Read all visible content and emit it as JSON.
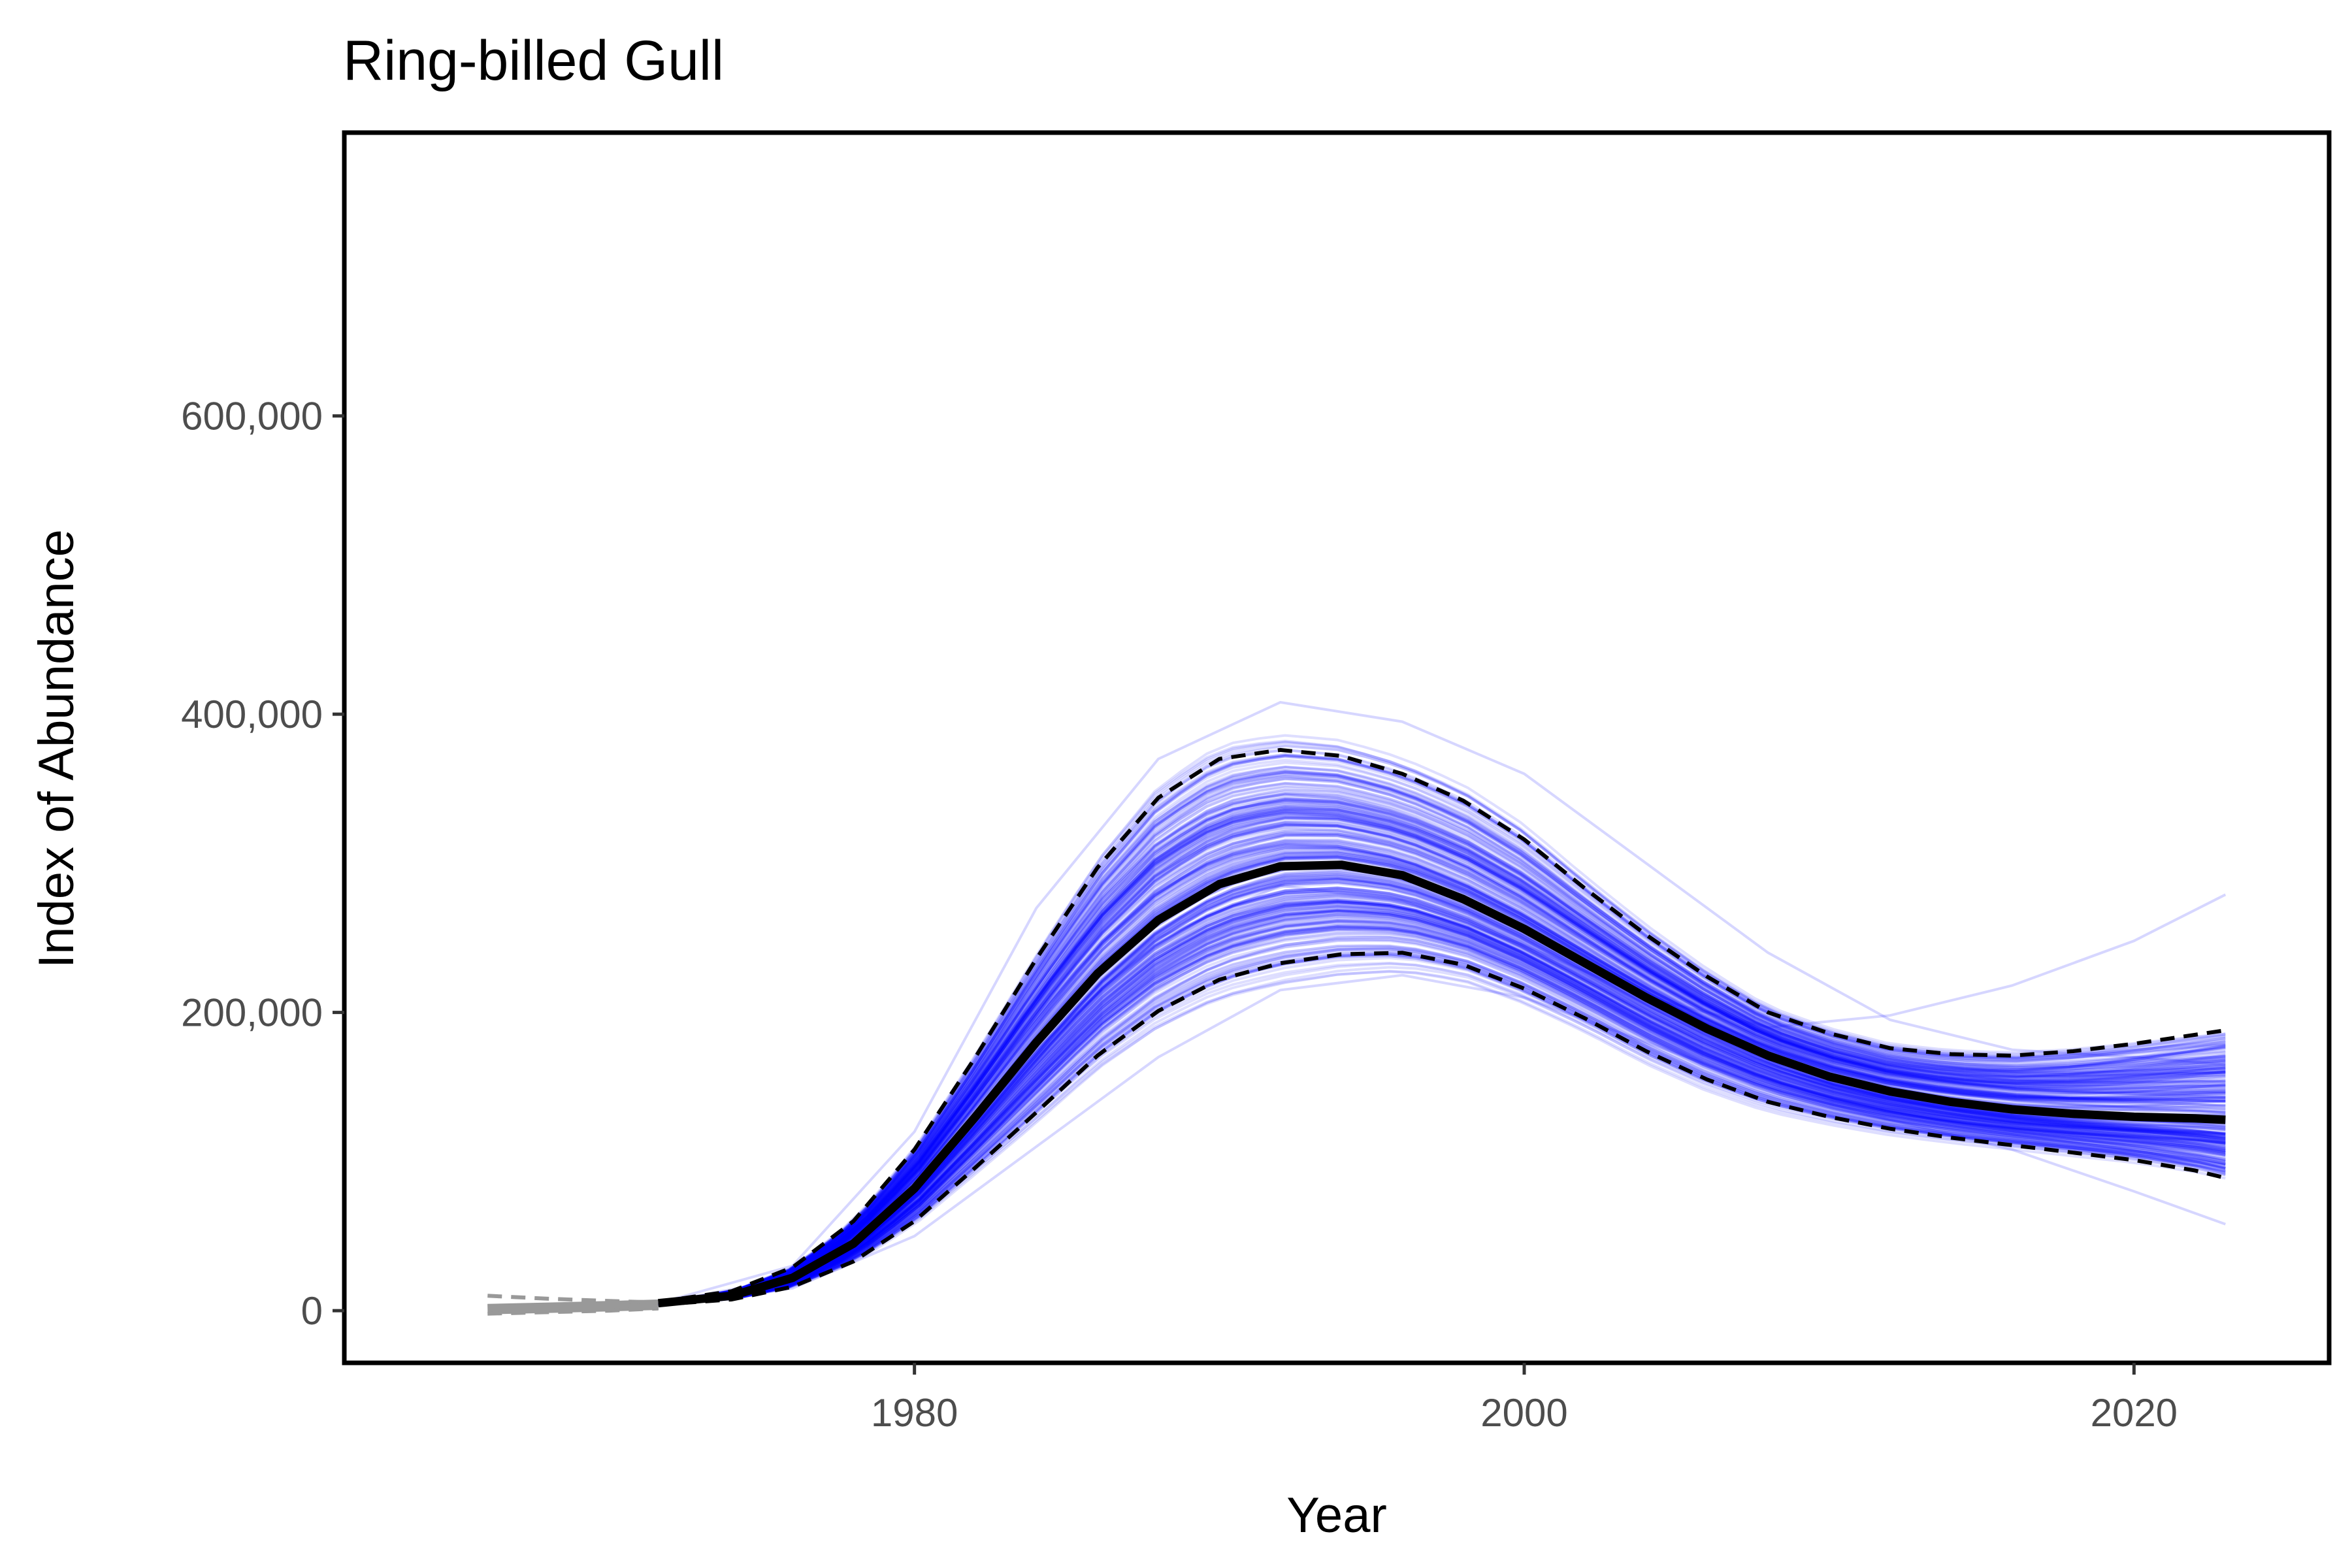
{
  "chart_data": {
    "type": "line",
    "title": "Ring-billed Gull",
    "xlabel": "Year",
    "ylabel": "Index of Abundance",
    "xlim": [
      1961.3,
      2026.4
    ],
    "ylim": [
      -35000,
      790000
    ],
    "x_ticks": [
      1980,
      2000,
      2020
    ],
    "x_tick_labels": [
      "1980",
      "2000",
      "2020"
    ],
    "y_ticks": [
      0,
      200000,
      400000,
      600000
    ],
    "y_tick_labels": [
      "0",
      "200,000",
      "400,000",
      "600,000"
    ],
    "grid": false,
    "legend": "none",
    "colors": {
      "trajectory": "#0000ff",
      "trend": "#000000",
      "early_period": "#999999"
    },
    "early_period": {
      "x": [
        1966,
        1968,
        1970,
        1971.6
      ],
      "median": [
        1000,
        2000,
        3000,
        4000
      ],
      "upper": [
        10000,
        8000,
        6500,
        5500
      ],
      "lower": [
        -2000,
        -1000,
        0,
        1500
      ]
    },
    "trend": {
      "x": [
        1971.6,
        1974,
        1976,
        1978,
        1980,
        1982,
        1984,
        1986,
        1988,
        1990,
        1992,
        1994,
        1996,
        1998,
        2000,
        2002,
        2004,
        2006,
        2008,
        2010,
        2012,
        2014,
        2016,
        2018,
        2020,
        2022,
        2023
      ],
      "median": [
        5000,
        10000,
        22000,
        45000,
        82000,
        130000,
        180000,
        226000,
        262000,
        286000,
        298000,
        299000,
        292000,
        276000,
        256000,
        233000,
        210000,
        189000,
        171000,
        157000,
        147000,
        140000,
        135000,
        132000,
        130000,
        129000,
        128000
      ],
      "upper": [
        6000,
        13000,
        29000,
        60000,
        108000,
        170000,
        236000,
        297000,
        344000,
        370000,
        376000,
        372000,
        360000,
        342000,
        316000,
        283000,
        252000,
        224000,
        200000,
        186000,
        176000,
        172000,
        171000,
        174000,
        179000,
        185000,
        188000
      ],
      "lower": [
        4000,
        7500,
        16000,
        33000,
        60000,
        96000,
        133000,
        171000,
        201000,
        222000,
        233000,
        239000,
        240000,
        232000,
        216000,
        196000,
        174000,
        155000,
        140000,
        130000,
        122000,
        116000,
        111000,
        106000,
        101000,
        94000,
        89000
      ]
    },
    "sample_trajectories": 300,
    "extreme_trajectories": [
      {
        "x": [
          1971.6,
          1976,
          1980,
          1984,
          1988,
          1992,
          1996,
          2000,
          2004,
          2008,
          2012,
          2016,
          2020,
          2023
        ],
        "y": [
          5000,
          22000,
          80000,
          175000,
          250000,
          285000,
          275000,
          245000,
          210000,
          190000,
          198000,
          218000,
          248000,
          279000
        ]
      },
      {
        "x": [
          1971.6,
          1976,
          1980,
          1984,
          1988,
          1992,
          1996,
          2000,
          2004,
          2008,
          2012,
          2016,
          2020,
          2023
        ],
        "y": [
          5000,
          30000,
          120000,
          270000,
          370000,
          408000,
          395000,
          360000,
          300000,
          240000,
          195000,
          175000,
          170000,
          165000
        ]
      },
      {
        "x": [
          1971.6,
          1976,
          1980,
          1984,
          1988,
          1992,
          1996,
          2000,
          2004,
          2008,
          2012,
          2016,
          2020,
          2023
        ],
        "y": [
          4000,
          15000,
          50000,
          110000,
          170000,
          215000,
          225000,
          210000,
          180000,
          150000,
          128000,
          108000,
          80000,
          58000
        ]
      }
    ]
  }
}
